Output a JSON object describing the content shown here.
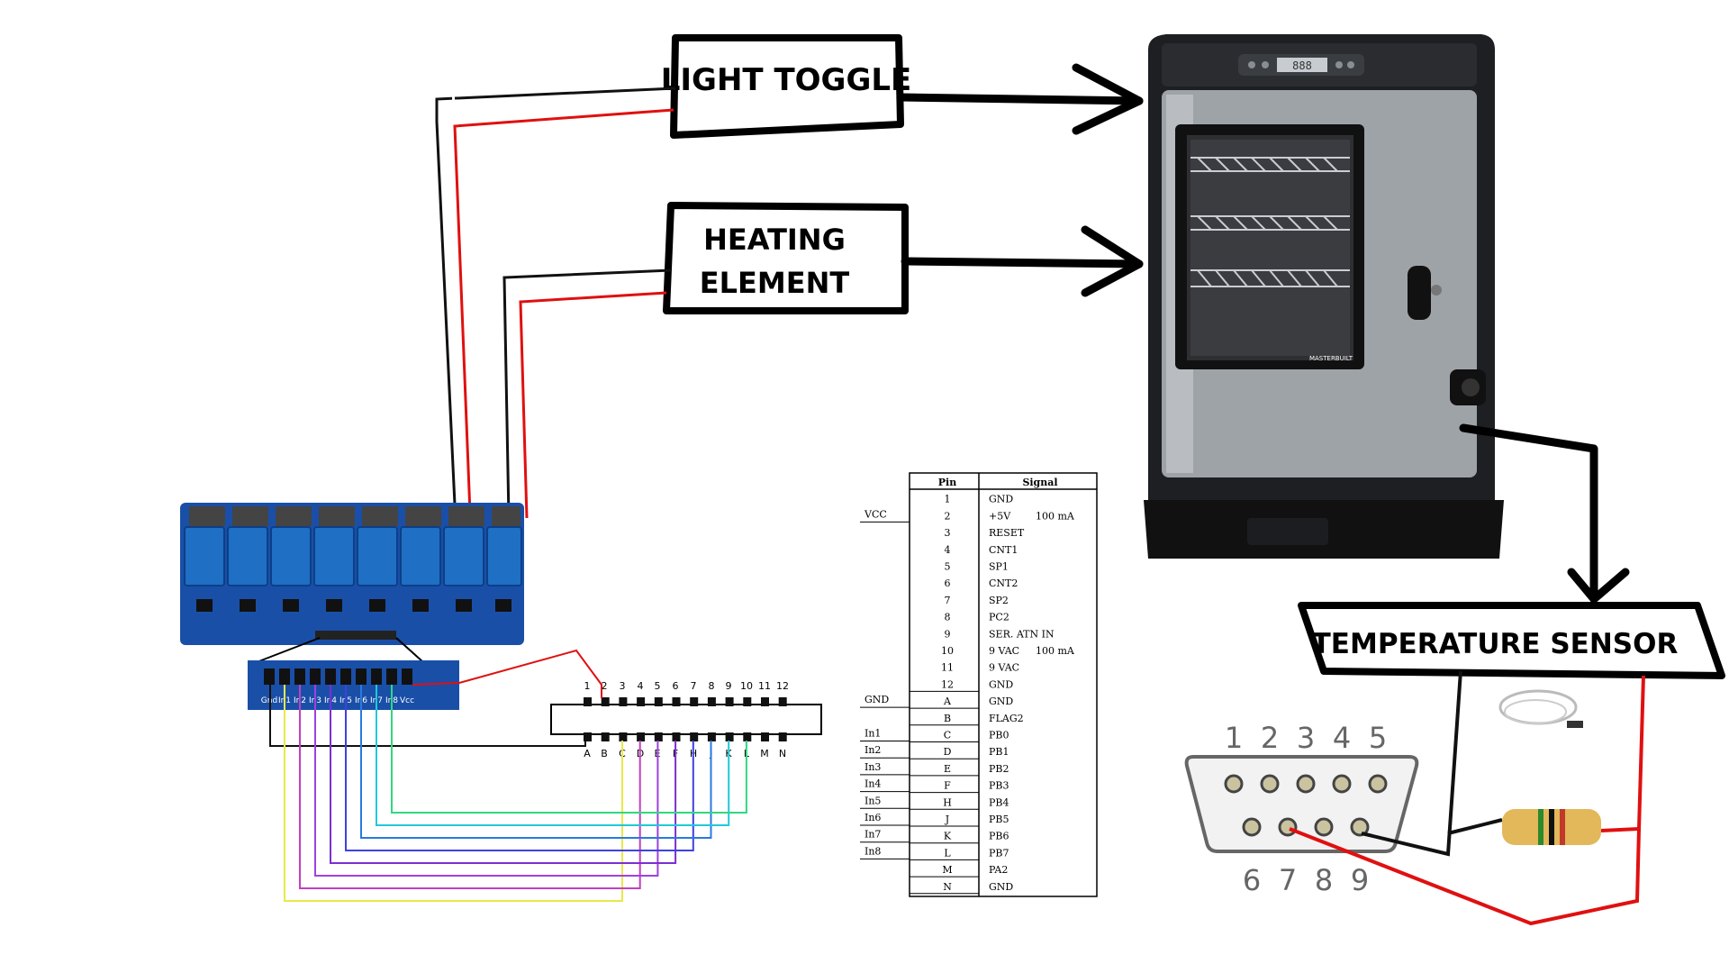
{
  "labels": {
    "light_toggle": "LIGHT TOGGLE",
    "heating_line1": "HEATING",
    "heating_line2": "ELEMENT",
    "temperature_sensor": "TEMPERATURE SENSOR"
  },
  "relay_board": {
    "header_pins": [
      "Gnd",
      "In1",
      "In2",
      "In3",
      "In4",
      "In5",
      "In6",
      "In7",
      "In8",
      "Vcc"
    ]
  },
  "connector_strip": {
    "top_numbers": [
      "1",
      "2",
      "3",
      "4",
      "5",
      "6",
      "7",
      "8",
      "9",
      "10",
      "11",
      "12"
    ],
    "bottom_letters": [
      "A",
      "B",
      "C",
      "D",
      "E",
      "F",
      "H",
      "J",
      "K",
      "L",
      "M",
      "N"
    ]
  },
  "pin_table": {
    "col_pin": "Pin",
    "col_signal": "Signal",
    "rows": [
      {
        "left": "",
        "pin": "1",
        "signal": "GND",
        "note": ""
      },
      {
        "left": "VCC",
        "pin": "2",
        "signal": "+5V",
        "note": "100 mA"
      },
      {
        "left": "",
        "pin": "3",
        "signal": "RESET",
        "note": ""
      },
      {
        "left": "",
        "pin": "4",
        "signal": "CNT1",
        "note": ""
      },
      {
        "left": "",
        "pin": "5",
        "signal": "SP1",
        "note": ""
      },
      {
        "left": "",
        "pin": "6",
        "signal": "CNT2",
        "note": ""
      },
      {
        "left": "",
        "pin": "7",
        "signal": "SP2",
        "note": ""
      },
      {
        "left": "",
        "pin": "8",
        "signal": "PC2",
        "note": ""
      },
      {
        "left": "",
        "pin": "9",
        "signal": "SER. ATN IN",
        "note": ""
      },
      {
        "left": "",
        "pin": "10",
        "signal": "9 VAC",
        "note": "100 mA"
      },
      {
        "left": "",
        "pin": "11",
        "signal": "9 VAC",
        "note": ""
      },
      {
        "left": "",
        "pin": "12",
        "signal": "GND",
        "note": ""
      },
      {
        "left": "GND",
        "pin": "A",
        "signal": "GND",
        "note": ""
      },
      {
        "left": "",
        "pin": "B",
        "signal": "FLAG2",
        "note": ""
      },
      {
        "left": "In1",
        "pin": "C",
        "signal": "PB0",
        "note": ""
      },
      {
        "left": "In2",
        "pin": "D",
        "signal": "PB1",
        "note": ""
      },
      {
        "left": "In3",
        "pin": "E",
        "signal": "PB2",
        "note": ""
      },
      {
        "left": "In4",
        "pin": "F",
        "signal": "PB3",
        "note": ""
      },
      {
        "left": "In5",
        "pin": "H",
        "signal": "PB4",
        "note": ""
      },
      {
        "left": "In6",
        "pin": "J",
        "signal": "PB5",
        "note": ""
      },
      {
        "left": "In7",
        "pin": "K",
        "signal": "PB6",
        "note": ""
      },
      {
        "left": "In8",
        "pin": "L",
        "signal": "PB7",
        "note": ""
      },
      {
        "left": "",
        "pin": "M",
        "signal": "PA2",
        "note": ""
      },
      {
        "left": "",
        "pin": "N",
        "signal": "GND",
        "note": ""
      }
    ]
  },
  "db9": {
    "top_numbers": [
      "1",
      "2",
      "3",
      "4",
      "5"
    ],
    "bottom_numbers": [
      "6",
      "7",
      "8",
      "9"
    ]
  },
  "smoker": {
    "brand": "MASTERBUILT",
    "display": "888"
  },
  "colors": {
    "wire_red": "#e01010",
    "wire_black": "#111111",
    "relay_blue": "#1f6fc4",
    "relay_module": "#1a4fa8",
    "smoker_steel": "#9ea3a8",
    "smoker_body": "#1d1f22",
    "resistor": "#e2b85a",
    "ribbon": [
      "#e8e84a",
      "#c040c0",
      "#a040e0",
      "#7a30d0",
      "#4040e0",
      "#2a7ae0",
      "#20c8d8",
      "#30d880",
      "#e08a2a"
    ]
  }
}
